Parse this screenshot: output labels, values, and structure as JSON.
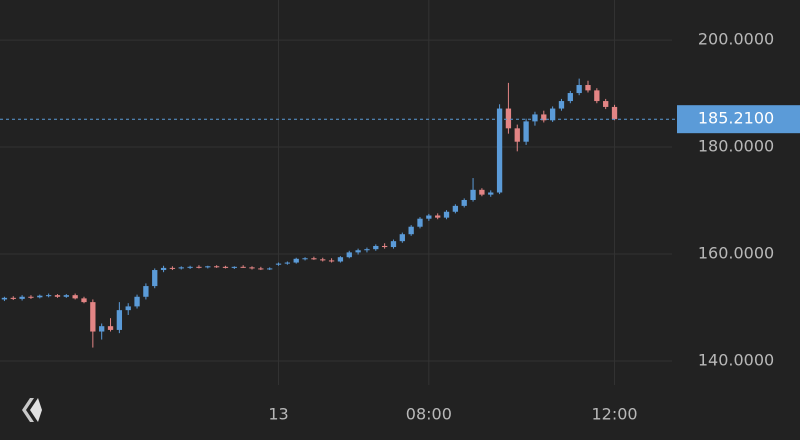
{
  "chart_data": {
    "type": "candlestick",
    "up_color": "#5b9bd8",
    "down_color": "#e38585",
    "ylim": [
      135.5,
      207.5
    ],
    "yticks": [
      {
        "value": 140,
        "label": "140.0000"
      },
      {
        "value": 160,
        "label": "160.0000"
      },
      {
        "value": 180,
        "label": "180.0000"
      },
      {
        "value": 200,
        "label": "200.0000"
      }
    ],
    "xlim": [
      -0.5,
      75.5
    ],
    "xticks": [
      {
        "value": 31,
        "label": "13"
      },
      {
        "value": 48,
        "label": "08:00"
      },
      {
        "value": 69,
        "label": "12:00"
      }
    ],
    "grid": true,
    "last_price": {
      "value": 185.21,
      "label": "185.2100"
    },
    "ohlc": [
      [
        151.5,
        152,
        151.2,
        151.8
      ],
      [
        151.8,
        152.1,
        151.4,
        151.6
      ],
      [
        151.6,
        152.3,
        151.3,
        152
      ],
      [
        152,
        152.3,
        151.6,
        151.9
      ],
      [
        151.9,
        152.4,
        151.7,
        152.2
      ],
      [
        152.2,
        152.6,
        151.9,
        152.3
      ],
      [
        152.3,
        152.5,
        151.8,
        152
      ],
      [
        152,
        152.5,
        151.8,
        152.3
      ],
      [
        152.3,
        152.6,
        151.5,
        151.7
      ],
      [
        151.7,
        152,
        150.8,
        151
      ],
      [
        151,
        151.5,
        142.5,
        145.5
      ],
      [
        145.5,
        147,
        144,
        146.5
      ],
      [
        146.5,
        148,
        145.5,
        145.8
      ],
      [
        145.8,
        151,
        145.2,
        149.5
      ],
      [
        149.5,
        150.8,
        148.6,
        150.2
      ],
      [
        150.2,
        152.4,
        149.8,
        152
      ],
      [
        152,
        154.5,
        151.5,
        154
      ],
      [
        154,
        157.3,
        153.6,
        157
      ],
      [
        157,
        157.8,
        156.6,
        157.4
      ],
      [
        157.4,
        157.7,
        157,
        157.3
      ],
      [
        157.3,
        157.7,
        157.1,
        157.5
      ],
      [
        157.5,
        157.8,
        157.2,
        157.6
      ],
      [
        157.6,
        157.9,
        157.3,
        157.5
      ],
      [
        157.5,
        157.8,
        157.3,
        157.7
      ],
      [
        157.7,
        157.9,
        157.4,
        157.6
      ],
      [
        157.6,
        157.8,
        157.3,
        157.4
      ],
      [
        157.4,
        157.7,
        157.2,
        157.6
      ],
      [
        157.6,
        157.9,
        157.4,
        157.5
      ],
      [
        157.5,
        157.7,
        157.1,
        157.3
      ],
      [
        157.3,
        157.6,
        157,
        157.2
      ],
      [
        157.2,
        157.5,
        157,
        157.3
      ],
      [
        158,
        158.4,
        157.8,
        158.2
      ],
      [
        158.2,
        158.6,
        158,
        158.4
      ],
      [
        158.4,
        159.3,
        158.2,
        159.1
      ],
      [
        159.1,
        159.4,
        158.8,
        159.2
      ],
      [
        159.2,
        159.5,
        158.9,
        159
      ],
      [
        159,
        159.3,
        158.6,
        158.8
      ],
      [
        158.8,
        159.2,
        158.4,
        158.6
      ],
      [
        158.6,
        159.6,
        158.4,
        159.4
      ],
      [
        159.4,
        160.6,
        159.2,
        160.3
      ],
      [
        160.3,
        161,
        159.9,
        160.7
      ],
      [
        160.7,
        161.2,
        160.3,
        160.9
      ],
      [
        160.9,
        161.8,
        160.6,
        161.5
      ],
      [
        161.5,
        162,
        161,
        161.3
      ],
      [
        161.3,
        162.7,
        161,
        162.4
      ],
      [
        162.4,
        164,
        162.1,
        163.7
      ],
      [
        163.7,
        165.4,
        163.4,
        165.1
      ],
      [
        165.1,
        166.9,
        164.8,
        166.6
      ],
      [
        166.6,
        167.5,
        166.2,
        167.2
      ],
      [
        167.2,
        167.6,
        166.5,
        166.8
      ],
      [
        166.8,
        168.2,
        166.5,
        167.9
      ],
      [
        167.9,
        169.3,
        167.6,
        169
      ],
      [
        169,
        170.4,
        168.7,
        170.1
      ],
      [
        170.1,
        174.2,
        169.8,
        172
      ],
      [
        172,
        172.3,
        170.8,
        171.1
      ],
      [
        171.1,
        171.9,
        170.7,
        171.5
      ],
      [
        171.5,
        188,
        171.2,
        187.2
      ],
      [
        187.2,
        192,
        182.5,
        183.5
      ],
      [
        183.5,
        184.2,
        179.2,
        181
      ],
      [
        181,
        185.3,
        180.4,
        184.8
      ],
      [
        184.8,
        186.6,
        184,
        186.1
      ],
      [
        186.1,
        186.8,
        184.6,
        185
      ],
      [
        185,
        187.6,
        184.7,
        187.2
      ],
      [
        187.2,
        189,
        186.8,
        188.6
      ],
      [
        188.6,
        190.5,
        188.2,
        190.1
      ],
      [
        190.1,
        192.8,
        189.7,
        191.6
      ],
      [
        191.6,
        192.4,
        190.2,
        190.6
      ],
      [
        190.6,
        191,
        188.2,
        188.6
      ],
      [
        188.6,
        189,
        187.1,
        187.5
      ],
      [
        187.5,
        187.9,
        185,
        185.21
      ]
    ]
  }
}
